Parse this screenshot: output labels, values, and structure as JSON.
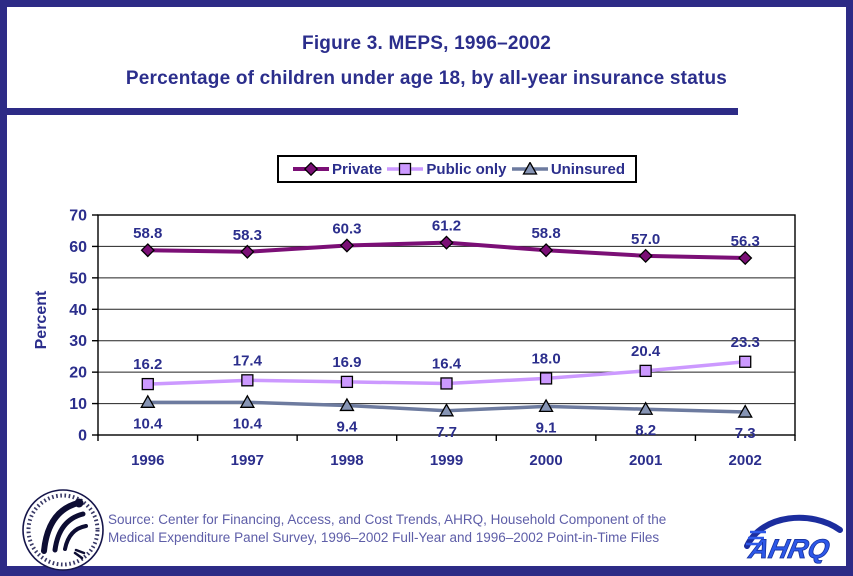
{
  "page": {
    "title_line1": "Figure 3. MEPS, 1996–2002",
    "title_line2": "Percentage of children under age 18, by all-year insurance status",
    "source_line1": "Source: Center for Financing, Access, and Cost Trends, AHRQ, Household Component of the",
    "source_line2": "Medical Expenditure Panel Survey, 1996–2002 Full-Year and 1996–2002 Point-in-Time Files",
    "border_color": "#2d2b86",
    "text_navy": "#2b2e8c"
  },
  "logos": {
    "ahrq_text": "AHRQ",
    "hhs_ring_text": "DEPARTMENT OF HEALTH & HUMAN SERVICES · USA"
  },
  "chart_data": {
    "type": "line",
    "title": "Percentage of children under age 18, by all-year insurance status, MEPS 1996–2002",
    "categories": [
      "1996",
      "1997",
      "1998",
      "1999",
      "2000",
      "2001",
      "2002"
    ],
    "series": [
      {
        "name": "Private",
        "values": [
          58.8,
          58.3,
          60.3,
          61.2,
          58.8,
          57.0,
          56.3
        ],
        "labels": [
          "58.8",
          "58.3",
          "60.3",
          "61.2",
          "58.8",
          "57.0",
          "56.3"
        ],
        "color": "#7b0f76",
        "marker": "diamond",
        "marker_fill": "#7b0f76"
      },
      {
        "name": "Public only",
        "values": [
          16.2,
          17.4,
          16.9,
          16.4,
          18.0,
          20.4,
          23.3
        ],
        "labels": [
          "16.2",
          "17.4",
          "16.9",
          "16.4",
          "18.0",
          "20.4",
          "23.3"
        ],
        "color": "#cc99ff",
        "marker": "square",
        "marker_fill": "#cc99ff"
      },
      {
        "name": "Uninsured",
        "values": [
          10.4,
          10.4,
          9.4,
          7.7,
          9.1,
          8.2,
          7.3
        ],
        "labels": [
          "10.4",
          "10.4",
          "9.4",
          "7.7",
          "9.1",
          "8.2",
          "7.3"
        ],
        "color": "#6d7b9f",
        "marker": "triangle",
        "marker_fill": "#8694b4"
      }
    ],
    "xlabel": "",
    "ylabel": "Percent",
    "ylim": [
      0,
      70
    ],
    "ytick_step": 10,
    "yticks": [
      "0",
      "10",
      "20",
      "30",
      "40",
      "50",
      "60",
      "70"
    ],
    "grid": true,
    "legend_position": "top",
    "label_color": "#2b2e8c"
  }
}
